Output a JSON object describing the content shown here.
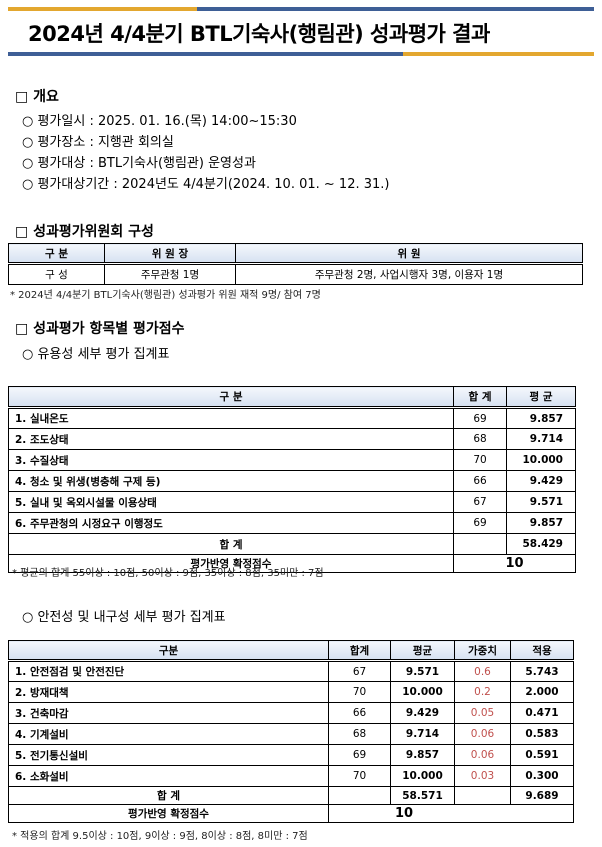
{
  "title": "2024년 4/4분기 BTL기숙사(행림관) 성과평가 결과",
  "colors": {
    "gold": "#e3a72f",
    "blue": "#3e5f96",
    "weight_red": "#c0504d"
  },
  "overview": {
    "heading": "□ 개요",
    "items": [
      "○ 평가일시 : 2025. 01. 16.(목) 14:00~15:30",
      "○ 평가장소 : 지행관 회의실",
      "○ 평가대상 : BTL기숙사(행림관) 운영성과",
      "○ 평가대상기간 : 2024년도 4/4분기(2024. 10. 01. ~ 12. 31.)"
    ]
  },
  "committee": {
    "heading": "□ 성과평가위원회 구성",
    "headers": [
      "구  분",
      "위 원 장",
      "위 원"
    ],
    "row": [
      "구    성",
      "주무관청 1명",
      "주무관청 2명, 사업시행자 3명, 이용자 1명"
    ],
    "note": "* 2024년 4/4분기 BTL기숙사(행림관) 성과평가 위원 재적 9명/ 참여 7명"
  },
  "scores": {
    "heading": "□ 성과평가 항목별 평가점수"
  },
  "usability": {
    "subheading": "○ 유용성 세부 평가 집계표",
    "headers": [
      "구  분",
      "합  계",
      "평  균"
    ],
    "rows": [
      [
        "1. 실내온도",
        "69",
        "9.857"
      ],
      [
        "2. 조도상태",
        "68",
        "9.714"
      ],
      [
        "3. 수질상태",
        "70",
        "10.000"
      ],
      [
        "4. 청소 및 위생(병충해 구제 등)",
        "66",
        "9.429"
      ],
      [
        "5. 실내 및 옥외시설물 이용상태",
        "67",
        "9.571"
      ],
      [
        "6. 주무관청의 시정요구 이행정도",
        "69",
        "9.857"
      ]
    ],
    "total_label": "합  계",
    "total_avg": "58.429",
    "final_label": "평가반영 확정점수",
    "final": "10",
    "note": "* 평균의 합계 55이상 : 10점, 50이상 : 9점, 35이상 : 8점, 35미만 : 7점"
  },
  "safety": {
    "subheading": "○ 안전성 및 내구성 세부 평가 집계표",
    "headers": [
      "구분",
      "합계",
      "평균",
      "가중치",
      "적용"
    ],
    "rows": [
      [
        "1. 안전점검 및 안전진단",
        "67",
        "9.571",
        "0.6",
        "5.743"
      ],
      [
        "2. 방재대책",
        "70",
        "10.000",
        "0.2",
        "2.000"
      ],
      [
        "3. 건축마감",
        "66",
        "9.429",
        "0.05",
        "0.471"
      ],
      [
        "4. 기계설비",
        "68",
        "9.714",
        "0.06",
        "0.583"
      ],
      [
        "5. 전기통신설비",
        "69",
        "9.857",
        "0.06",
        "0.591"
      ],
      [
        "6. 소화설비",
        "70",
        "10.000",
        "0.03",
        "0.300"
      ]
    ],
    "total_label": "합  계",
    "total_avg": "58.571",
    "total_applied": "9.689",
    "final_label": "평가반영 확정점수",
    "final": "10",
    "note": "* 적용의 합계 9.5이상 : 10점, 9이상 : 9점, 8이상 : 8점, 8미만 : 7점"
  }
}
